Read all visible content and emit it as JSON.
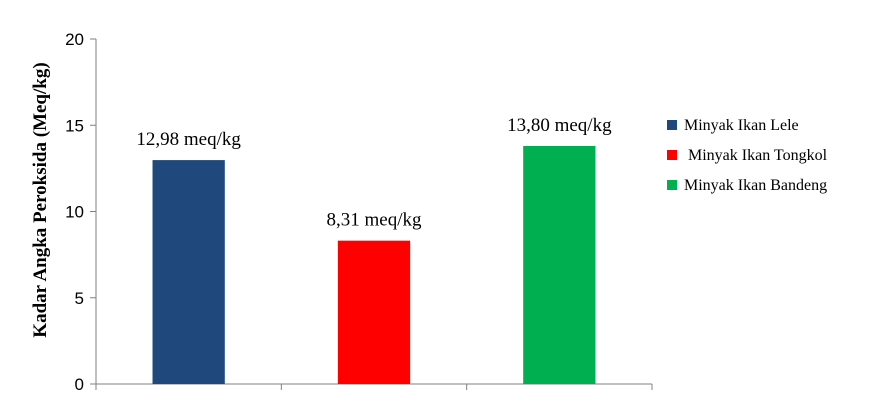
{
  "chart_data": {
    "type": "bar",
    "categories": [
      "Minyak Ikan Lele",
      "Minyak Ikan Tongkol",
      "Minyak Ikan Bandeng"
    ],
    "values": [
      12.98,
      8.31,
      13.8
    ],
    "data_labels": [
      "12,98 meq/kg",
      "8,31 meq/kg",
      "13,80 meq/kg"
    ],
    "colors": [
      "#1F497D",
      "#FF0000",
      "#00B050"
    ],
    "ylabel": "Kadar Angka Peroksida (Meq/kg)",
    "xlabel": "",
    "ylim": [
      0,
      20
    ],
    "yticks": [
      "0",
      "5",
      "10",
      "15",
      "20"
    ],
    "grid": false,
    "legend_position": "right",
    "legend": [
      {
        "label": "Minyak Ikan Lele",
        "color": "#1F497D"
      },
      {
        "label": " Minyak Ikan Tongkol",
        "color": "#FF0000"
      },
      {
        "label": "Minyak Ikan Bandeng",
        "color": "#00B050"
      }
    ]
  }
}
